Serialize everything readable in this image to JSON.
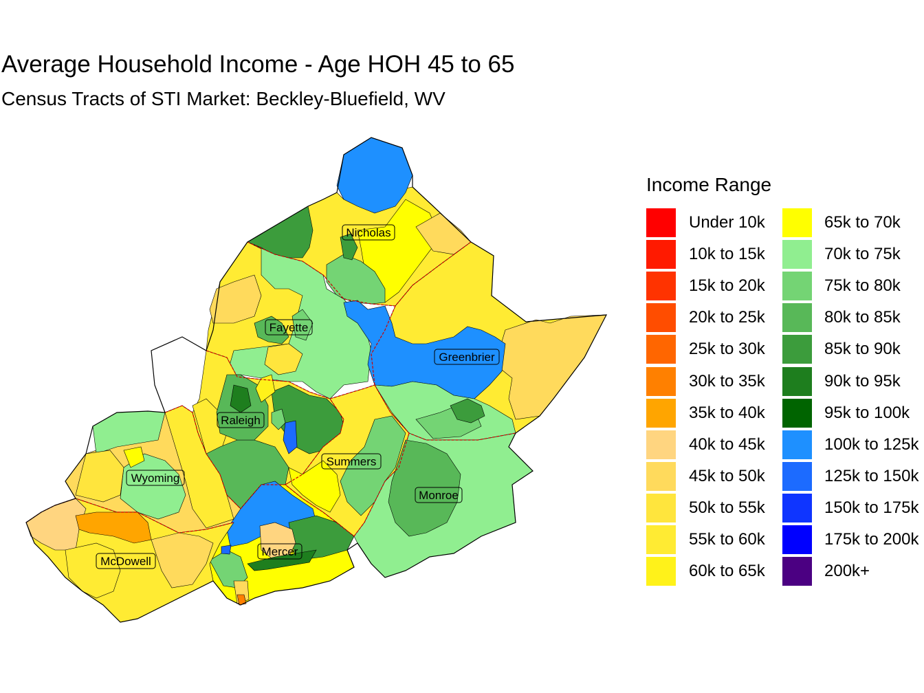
{
  "title": "Average Household Income - Age HOH 45 to 65",
  "subtitle": "Census Tracts of STI Market: Beckley-Bluefield, WV",
  "legend": {
    "title": "Income Range",
    "items": [
      {
        "label": "Under 10k",
        "color": "#FF0000"
      },
      {
        "label": "10k to 15k",
        "color": "#FF1A00"
      },
      {
        "label": "15k to 20k",
        "color": "#FF3300"
      },
      {
        "label": "20k to 25k",
        "color": "#FF4D00"
      },
      {
        "label": "25k to 30k",
        "color": "#FF6600"
      },
      {
        "label": "30k to 35k",
        "color": "#FF8000"
      },
      {
        "label": "35k to 40k",
        "color": "#FFA500"
      },
      {
        "label": "40k to 45k",
        "color": "#FFD580"
      },
      {
        "label": "45k to 50k",
        "color": "#FFDA5C"
      },
      {
        "label": "50k to 55k",
        "color": "#FFE53D"
      },
      {
        "label": "55k to 60k",
        "color": "#FFEB33"
      },
      {
        "label": "60k to 65k",
        "color": "#FFF21A"
      },
      {
        "label": "65k to 70k",
        "color": "#FFFF00"
      },
      {
        "label": "70k to 75k",
        "color": "#90EE90"
      },
      {
        "label": "75k to 80k",
        "color": "#74D474"
      },
      {
        "label": "80k to 85k",
        "color": "#58B858"
      },
      {
        "label": "85k to 90k",
        "color": "#3C9C3C"
      },
      {
        "label": "90k to 95k",
        "color": "#1E7E1E"
      },
      {
        "label": "95k to 100k",
        "color": "#006400"
      },
      {
        "label": "100k to 125k",
        "color": "#1E90FF"
      },
      {
        "label": "125k to 150k",
        "color": "#1C6BFF"
      },
      {
        "label": "150k to 175k",
        "color": "#0F35FF"
      },
      {
        "label": "175k to 200k",
        "color": "#0000FF"
      },
      {
        "label": "200k+",
        "color": "#4B0082"
      }
    ]
  },
  "counties": [
    {
      "name": "Nicholas"
    },
    {
      "name": "Fayette"
    },
    {
      "name": "Greenbrier"
    },
    {
      "name": "Raleigh"
    },
    {
      "name": "Summers"
    },
    {
      "name": "Wyoming"
    },
    {
      "name": "Monroe"
    },
    {
      "name": "Mercer"
    },
    {
      "name": "McDowell"
    }
  ]
}
